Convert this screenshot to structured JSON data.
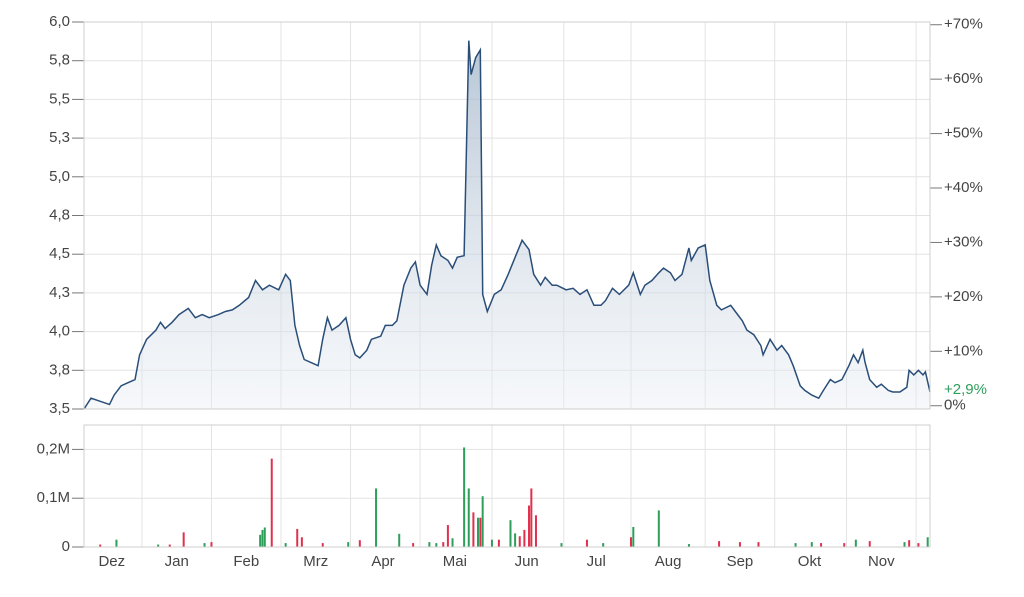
{
  "chart_data": [
    {
      "type": "area",
      "color": "#2a4e78",
      "xlim": [
        0,
        365
      ],
      "ylim": [
        3.5,
        6.0
      ],
      "yticks": [
        {
          "value": 3.5,
          "label": "3,5"
        },
        {
          "value": 3.75,
          "label": "3,8"
        },
        {
          "value": 4.0,
          "label": "4,0"
        },
        {
          "value": 4.25,
          "label": "4,3"
        },
        {
          "value": 4.5,
          "label": "4,5"
        },
        {
          "value": 4.75,
          "label": "4,8"
        },
        {
          "value": 5.0,
          "label": "5,0"
        },
        {
          "value": 5.25,
          "label": "5,3"
        },
        {
          "value": 5.5,
          "label": "5,5"
        },
        {
          "value": 5.75,
          "label": "5,8"
        },
        {
          "value": 6.0,
          "label": "6,0"
        }
      ],
      "y2lim": [
        -0.6,
        70.5
      ],
      "y2ticks": [
        {
          "value": 0,
          "label": "0%"
        },
        {
          "value": 10,
          "label": "+10%"
        },
        {
          "value": 20,
          "label": "+20%"
        },
        {
          "value": 30,
          "label": "+30%"
        },
        {
          "value": 40,
          "label": "+40%"
        },
        {
          "value": 50,
          "label": "+50%"
        },
        {
          "value": 60,
          "label": "+60%"
        },
        {
          "value": 70,
          "label": "+70%"
        }
      ],
      "last_change": {
        "value": 2.9,
        "label": "+2,9%",
        "color": "#2e9e5b"
      },
      "x_gridlines": [
        25,
        55,
        85,
        115,
        145,
        176,
        207,
        236,
        268,
        298,
        329,
        359
      ],
      "grid": true,
      "series": [
        {
          "x": [
            0,
            3,
            7,
            11,
            13,
            16,
            19,
            22,
            24,
            27,
            31,
            33,
            35,
            38,
            41,
            45,
            48,
            51,
            54,
            58,
            61,
            64,
            67,
            71,
            74,
            77,
            80,
            84,
            87,
            89,
            91,
            93,
            95,
            98,
            101,
            103,
            105,
            107,
            110,
            113,
            115,
            117,
            119,
            122,
            124,
            128,
            130,
            133,
            135,
            138,
            141,
            143,
            145,
            148,
            150,
            152,
            154,
            157,
            159,
            161,
            164,
            166,
            167,
            169,
            171,
            172,
            174,
            177,
            180,
            183,
            186,
            189,
            192,
            194,
            197,
            199,
            202,
            204,
            208,
            211,
            214,
            217,
            220,
            223,
            225,
            228,
            231,
            235,
            237,
            240,
            242,
            245,
            248,
            250,
            253,
            255,
            258,
            261,
            262,
            265,
            268,
            270,
            273,
            275,
            279,
            281,
            284,
            286,
            289,
            292,
            293,
            296,
            299,
            301,
            304,
            306,
            309,
            311,
            314,
            317,
            319,
            322,
            324,
            327,
            330,
            332,
            334,
            336,
            337,
            339,
            342,
            344,
            347,
            349,
            352,
            355,
            356,
            358,
            360,
            362,
            363,
            365
          ],
          "values": [
            3.5,
            3.57,
            3.55,
            3.53,
            3.59,
            3.65,
            3.67,
            3.69,
            3.85,
            3.95,
            4.01,
            4.06,
            4.02,
            4.06,
            4.11,
            4.15,
            4.09,
            4.11,
            4.09,
            4.11,
            4.13,
            4.14,
            4.17,
            4.22,
            4.33,
            4.27,
            4.3,
            4.27,
            4.37,
            4.33,
            4.04,
            3.91,
            3.82,
            3.8,
            3.78,
            3.95,
            4.09,
            4.01,
            4.04,
            4.09,
            3.95,
            3.85,
            3.83,
            3.88,
            3.95,
            3.97,
            4.04,
            4.04,
            4.07,
            4.3,
            4.41,
            4.45,
            4.3,
            4.24,
            4.43,
            4.56,
            4.49,
            4.46,
            4.41,
            4.48,
            4.49,
            5.88,
            5.66,
            5.77,
            5.82,
            4.24,
            4.13,
            4.24,
            4.27,
            4.37,
            4.48,
            4.59,
            4.53,
            4.37,
            4.3,
            4.35,
            4.3,
            4.3,
            4.27,
            4.28,
            4.24,
            4.27,
            4.17,
            4.17,
            4.2,
            4.28,
            4.24,
            4.3,
            4.38,
            4.24,
            4.3,
            4.33,
            4.38,
            4.41,
            4.38,
            4.33,
            4.37,
            4.54,
            4.46,
            4.54,
            4.56,
            4.33,
            4.17,
            4.14,
            4.17,
            4.13,
            4.07,
            4.01,
            3.98,
            3.91,
            3.85,
            3.95,
            3.88,
            3.91,
            3.85,
            3.78,
            3.65,
            3.62,
            3.59,
            3.57,
            3.62,
            3.69,
            3.67,
            3.69,
            3.78,
            3.85,
            3.8,
            3.88,
            3.8,
            3.69,
            3.64,
            3.66,
            3.62,
            3.61,
            3.61,
            3.64,
            3.75,
            3.72,
            3.75,
            3.72,
            3.74,
            3.61
          ]
        }
      ]
    },
    {
      "type": "bar",
      "xlim": [
        0,
        365
      ],
      "ylim": [
        0,
        250000
      ],
      "yticks": [
        0,
        {
          "value": 100000,
          "label": "0,1M"
        },
        {
          "value": 200000,
          "label": "0,2M"
        }
      ],
      "xticks": [
        {
          "value": 12,
          "label": "Dez"
        },
        {
          "value": 40,
          "label": "Jan"
        },
        {
          "value": 70,
          "label": "Feb"
        },
        {
          "value": 100,
          "label": "Mrz"
        },
        {
          "value": 129,
          "label": "Apr"
        },
        {
          "value": 160,
          "label": "Mai"
        },
        {
          "value": 191,
          "label": "Jun"
        },
        {
          "value": 221,
          "label": "Jul"
        },
        {
          "value": 252,
          "label": "Aug"
        },
        {
          "value": 283,
          "label": "Sep"
        },
        {
          "value": 313,
          "label": "Okt"
        },
        {
          "value": 344,
          "label": "Nov"
        }
      ],
      "series": [
        {
          "color": "#2e9e5b",
          "x": [
            14,
            32,
            52,
            76,
            77,
            78,
            87,
            114,
            126,
            136,
            149,
            152,
            159,
            164,
            166,
            170,
            172,
            176,
            184,
            186,
            206,
            224,
            237,
            248,
            261,
            307,
            314,
            333,
            354,
            364
          ],
          "values": [
            15000,
            5000,
            8000,
            25000,
            35000,
            40000,
            8000,
            10000,
            120000,
            27000,
            10000,
            8000,
            18000,
            204000,
            120000,
            60000,
            104000,
            15000,
            55000,
            28000,
            8000,
            8000,
            41000,
            75000,
            6000,
            8000,
            10000,
            15000,
            10000,
            20000
          ]
        },
        {
          "color": "#e0304e",
          "x": [
            7,
            37,
            43,
            55,
            81,
            92,
            94,
            103,
            119,
            142,
            155,
            157,
            168,
            171,
            179,
            188,
            190,
            192,
            193,
            195,
            217,
            236,
            274,
            283,
            291,
            318,
            328,
            339,
            356,
            360
          ],
          "values": [
            5000,
            5000,
            30000,
            10000,
            181000,
            37000,
            20000,
            8000,
            14000,
            8000,
            10000,
            45000,
            71000,
            60000,
            15000,
            22000,
            35000,
            85000,
            120000,
            65000,
            15000,
            20000,
            12000,
            10000,
            10000,
            8000,
            8000,
            12000,
            14000,
            8000
          ]
        }
      ]
    }
  ]
}
